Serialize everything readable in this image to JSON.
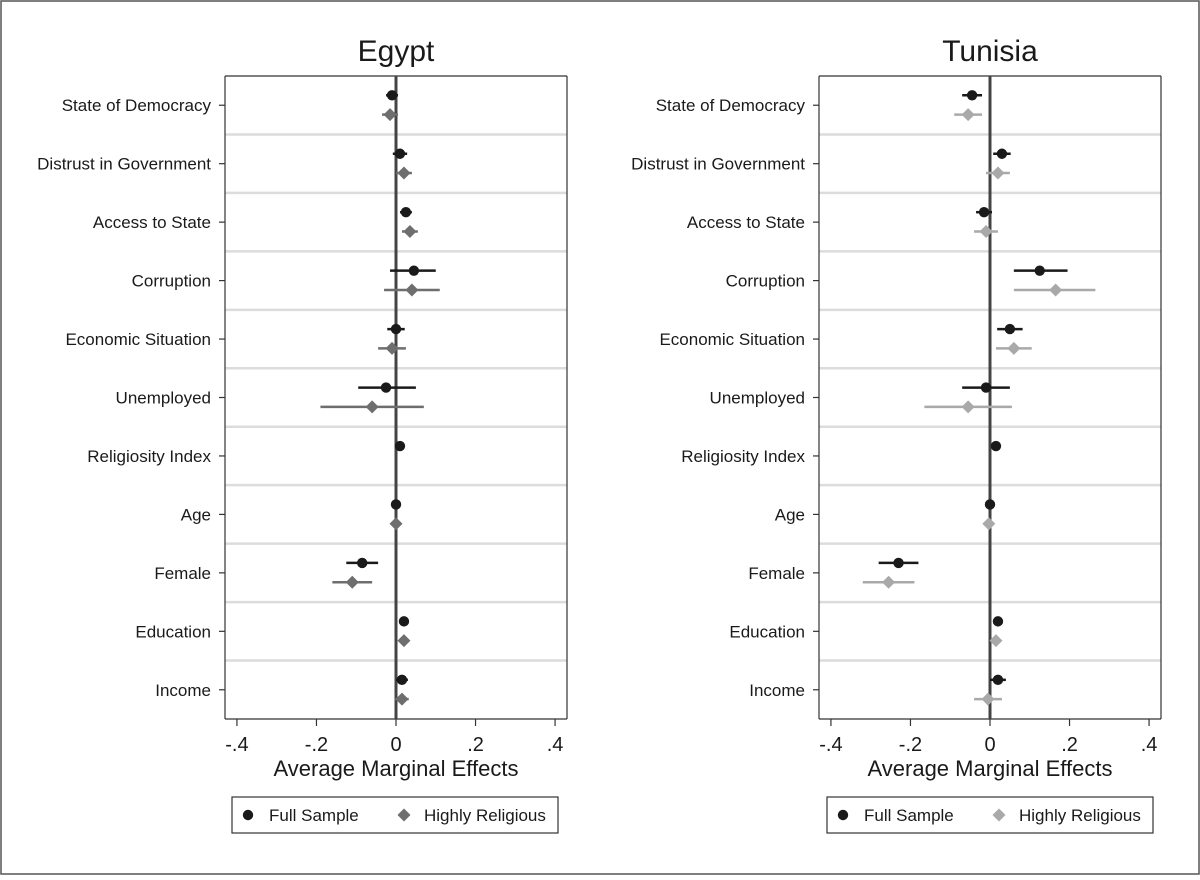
{
  "chart_data": [
    {
      "type": "scatter",
      "title": "Egypt",
      "xlabel": "Average Marginal Effects",
      "ylabel": "",
      "xlim": [
        -0.43,
        0.43
      ],
      "xticks": [
        -0.4,
        -0.2,
        0,
        0.2,
        0.4
      ],
      "xtick_labels": [
        "-.4",
        "-.2",
        "0",
        ".2",
        ".4"
      ],
      "categories": [
        "State of Democracy",
        "Distrust in Government",
        "Access to State",
        "Corruption",
        "Economic Situation",
        "Unemployed",
        "Religiosity Index",
        "Age",
        "Female",
        "Education",
        "Income"
      ],
      "series": [
        {
          "name": "Full Sample",
          "color": "#1a1a1a",
          "points": [
            {
              "y": "State of Democracy",
              "x": -0.01,
              "lo": -0.025,
              "hi": 0.005
            },
            {
              "y": "Distrust in Government",
              "x": 0.01,
              "lo": -0.008,
              "hi": 0.028
            },
            {
              "y": "Access to State",
              "x": 0.025,
              "lo": 0.01,
              "hi": 0.04
            },
            {
              "y": "Corruption",
              "x": 0.045,
              "lo": -0.015,
              "hi": 0.1
            },
            {
              "y": "Economic Situation",
              "x": 0.0,
              "lo": -0.022,
              "hi": 0.022
            },
            {
              "y": "Unemployed",
              "x": -0.025,
              "lo": -0.095,
              "hi": 0.05
            },
            {
              "y": "Religiosity Index",
              "x": 0.01,
              "lo": 0.005,
              "hi": 0.015
            },
            {
              "y": "Age",
              "x": 0.0,
              "lo": -0.003,
              "hi": 0.003
            },
            {
              "y": "Female",
              "x": -0.085,
              "lo": -0.125,
              "hi": -0.045
            },
            {
              "y": "Education",
              "x": 0.02,
              "lo": 0.013,
              "hi": 0.027
            },
            {
              "y": "Income",
              "x": 0.015,
              "lo": 0.0,
              "hi": 0.03
            }
          ]
        },
        {
          "name": "Highly Religious",
          "color": "#6e6e6e",
          "points": [
            {
              "y": "State of Democracy",
              "x": -0.015,
              "lo": -0.035,
              "hi": 0.005
            },
            {
              "y": "Distrust in Government",
              "x": 0.02,
              "lo": 0.0,
              "hi": 0.04
            },
            {
              "y": "Access to State",
              "x": 0.035,
              "lo": 0.015,
              "hi": 0.055
            },
            {
              "y": "Corruption",
              "x": 0.04,
              "lo": -0.03,
              "hi": 0.11
            },
            {
              "y": "Economic Situation",
              "x": -0.01,
              "lo": -0.045,
              "hi": 0.025
            },
            {
              "y": "Unemployed",
              "x": -0.06,
              "lo": -0.19,
              "hi": 0.07
            },
            {
              "y": "Age",
              "x": 0.0,
              "lo": -0.004,
              "hi": 0.004
            },
            {
              "y": "Female",
              "x": -0.11,
              "lo": -0.16,
              "hi": -0.06
            },
            {
              "y": "Education",
              "x": 0.02,
              "lo": 0.012,
              "hi": 0.028
            },
            {
              "y": "Income",
              "x": 0.015,
              "lo": -0.002,
              "hi": 0.032
            }
          ]
        }
      ],
      "reference_line_x": 0,
      "grid": true,
      "legend": [
        "Full Sample",
        "Highly Religious"
      ],
      "legend_position": "bottom"
    },
    {
      "type": "scatter",
      "title": "Tunisia",
      "xlabel": "Average Marginal Effects",
      "ylabel": "",
      "xlim": [
        -0.43,
        0.43
      ],
      "xticks": [
        -0.4,
        -0.2,
        0,
        0.2,
        0.4
      ],
      "xtick_labels": [
        "-.4",
        "-.2",
        "0",
        ".2",
        ".4"
      ],
      "categories": [
        "State of Democracy",
        "Distrust in Government",
        "Access to State",
        "Corruption",
        "Economic Situation",
        "Unemployed",
        "Religiosity Index",
        "Age",
        "Female",
        "Education",
        "Income"
      ],
      "series": [
        {
          "name": "Full Sample",
          "color": "#1a1a1a",
          "points": [
            {
              "y": "State of Democracy",
              "x": -0.045,
              "lo": -0.07,
              "hi": -0.02
            },
            {
              "y": "Distrust in Government",
              "x": 0.03,
              "lo": 0.008,
              "hi": 0.052
            },
            {
              "y": "Access to State",
              "x": -0.015,
              "lo": -0.035,
              "hi": 0.005
            },
            {
              "y": "Corruption",
              "x": 0.125,
              "lo": 0.06,
              "hi": 0.195
            },
            {
              "y": "Economic Situation",
              "x": 0.05,
              "lo": 0.018,
              "hi": 0.082
            },
            {
              "y": "Unemployed",
              "x": -0.01,
              "lo": -0.07,
              "hi": 0.05
            },
            {
              "y": "Religiosity Index",
              "x": 0.015,
              "lo": 0.01,
              "hi": 0.02
            },
            {
              "y": "Age",
              "x": 0.0,
              "lo": -0.003,
              "hi": 0.003
            },
            {
              "y": "Female",
              "x": -0.23,
              "lo": -0.28,
              "hi": -0.18
            },
            {
              "y": "Education",
              "x": 0.02,
              "lo": 0.012,
              "hi": 0.028
            },
            {
              "y": "Income",
              "x": 0.02,
              "lo": 0.0,
              "hi": 0.04
            }
          ]
        },
        {
          "name": "Highly Religious",
          "color": "#a9a9a9",
          "points": [
            {
              "y": "State of Democracy",
              "x": -0.055,
              "lo": -0.09,
              "hi": -0.02
            },
            {
              "y": "Distrust in Government",
              "x": 0.02,
              "lo": -0.01,
              "hi": 0.05
            },
            {
              "y": "Access to State",
              "x": -0.01,
              "lo": -0.04,
              "hi": 0.02
            },
            {
              "y": "Corruption",
              "x": 0.165,
              "lo": 0.06,
              "hi": 0.265
            },
            {
              "y": "Economic Situation",
              "x": 0.06,
              "lo": 0.015,
              "hi": 0.105
            },
            {
              "y": "Unemployed",
              "x": -0.055,
              "lo": -0.165,
              "hi": 0.055
            },
            {
              "y": "Age",
              "x": -0.003,
              "lo": -0.007,
              "hi": 0.001
            },
            {
              "y": "Female",
              "x": -0.255,
              "lo": -0.32,
              "hi": -0.19
            },
            {
              "y": "Education",
              "x": 0.015,
              "lo": 0.002,
              "hi": 0.028
            },
            {
              "y": "Income",
              "x": -0.005,
              "lo": -0.04,
              "hi": 0.03
            }
          ]
        }
      ],
      "reference_line_x": 0,
      "grid": true,
      "legend": [
        "Full Sample",
        "Highly Religious"
      ],
      "legend_position": "bottom"
    }
  ]
}
